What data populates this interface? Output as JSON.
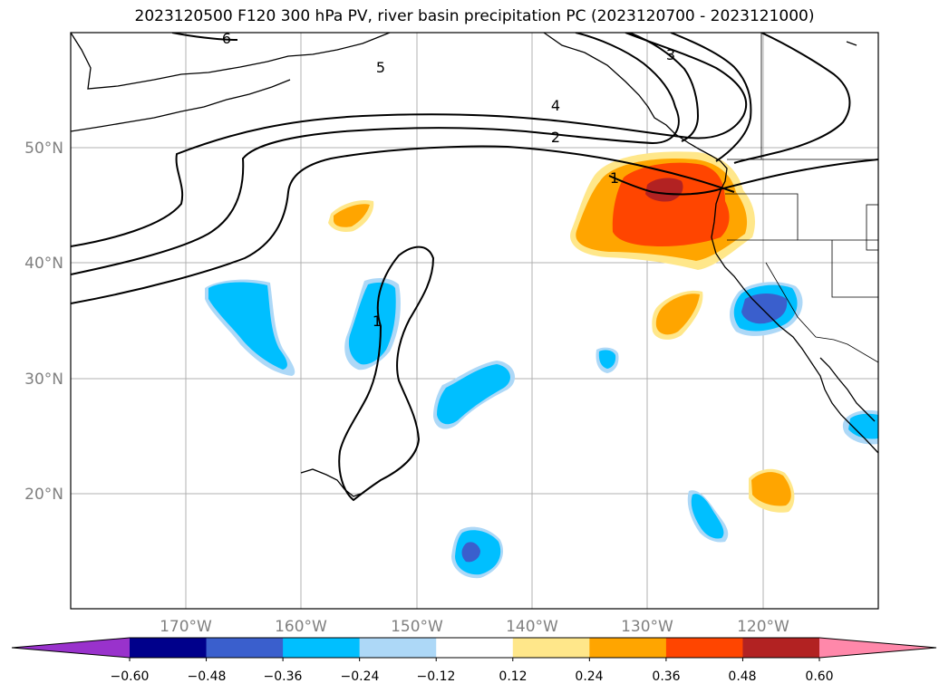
{
  "title": "2023120500 F120 300 hPa PV, river basin precipitation PC (2023120700 - 2023121000)",
  "map": {
    "lon_range": [
      -180,
      -110
    ],
    "lat_range": [
      10,
      60
    ],
    "lat_labels": [
      "50°N",
      "40°N",
      "30°N",
      "20°N"
    ],
    "lon_labels": [
      "170°W",
      "160°W",
      "150°W",
      "140°W",
      "130°W",
      "120°W"
    ],
    "contour_labels": [
      "6",
      "5",
      "4",
      "3",
      "2",
      "1",
      "1"
    ]
  },
  "colorbar": {
    "tick_labels": [
      "−0.60",
      "−0.48",
      "−0.36",
      "−0.24",
      "−0.12",
      "0.12",
      "0.24",
      "0.36",
      "0.48",
      "0.60"
    ],
    "colors": [
      "#9932cc",
      "#00008b",
      "#3a5fcd",
      "#00bfff",
      "#add8f7",
      "#ffffff",
      "#ffe78a",
      "#ffa500",
      "#ff4500",
      "#b22222",
      "#ff88aa"
    ]
  },
  "chart_data": {
    "type": "heatmap",
    "title": "2023120500 F120 300 hPa PV, river basin precipitation PC (2023120700 - 2023121000)",
    "x_ticks": [
      "170°W",
      "160°W",
      "150°W",
      "140°W",
      "130°W",
      "120°W"
    ],
    "y_ticks": [
      "50°N",
      "40°N",
      "30°N",
      "20°N"
    ],
    "xlim": [
      -180,
      -110
    ],
    "ylim": [
      10,
      60
    ],
    "contour_levels": [
      1,
      2,
      3,
      4,
      5,
      6
    ],
    "colorbar_levels": [
      -0.6,
      -0.48,
      -0.36,
      -0.24,
      -0.12,
      0.12,
      0.24,
      0.36,
      0.48,
      0.6
    ],
    "grid": true
  }
}
